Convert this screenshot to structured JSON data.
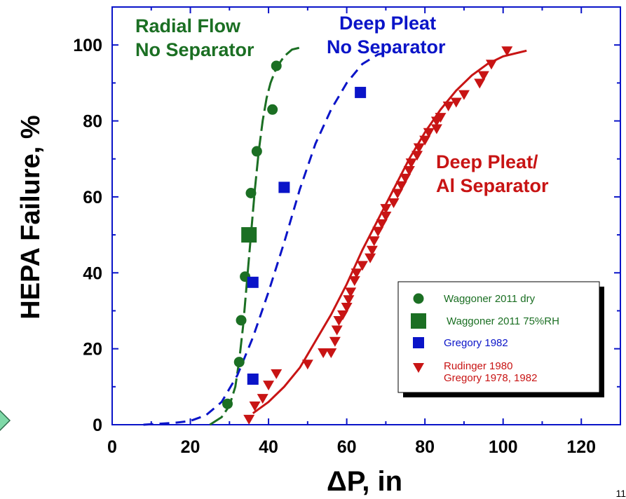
{
  "page_number": "11",
  "colors": {
    "green": "#1b6f23",
    "blue": "#0a14c8",
    "red": "#c81414",
    "nav_arrow": "#7fd9a8"
  },
  "chart_data": {
    "type": "scatter",
    "title": "",
    "xlabel": "ΔP, in",
    "ylabel": "HEPA Failure, %",
    "xlim": [
      0,
      130
    ],
    "ylim": [
      0,
      110
    ],
    "xticks": [
      0,
      20,
      40,
      60,
      80,
      100,
      120
    ],
    "yticks": [
      0,
      20,
      40,
      60,
      80,
      100
    ],
    "grid": false,
    "legend_position": "bottom-right",
    "annotations": [
      {
        "id": "radial",
        "lines": [
          "Radial Flow",
          "No Separator"
        ],
        "color": "green"
      },
      {
        "id": "deep",
        "lines": [
          "Deep Pleat",
          "No Separator"
        ],
        "color": "blue"
      },
      {
        "id": "deep-al",
        "lines": [
          "Deep Pleat/",
          "Al Separator"
        ],
        "color": "red"
      }
    ],
    "series": [
      {
        "name": "Waggoner 2011 dry",
        "marker": "circle",
        "color": "green",
        "points": [
          [
            29.5,
            5.5
          ],
          [
            32.5,
            16.5
          ],
          [
            33,
            27.5
          ],
          [
            34,
            39
          ],
          [
            35.5,
            61
          ],
          [
            37,
            72
          ],
          [
            41,
            83
          ],
          [
            42,
            94.5
          ]
        ]
      },
      {
        "name": "Waggoner 2011 75%RH",
        "marker": "big-square",
        "color": "green",
        "points": [
          [
            35,
            50
          ]
        ]
      },
      {
        "name": "Gregory 1982",
        "marker": "square",
        "color": "blue",
        "points": [
          [
            36,
            12
          ],
          [
            36,
            37.5
          ],
          [
            44,
            62.5
          ],
          [
            63.5,
            87.5
          ]
        ]
      },
      {
        "name": "Rudinger 1980",
        "name_line2": "Gregory 1978, 1982",
        "marker": "triangle-down",
        "color": "red",
        "points": [
          [
            35,
            1.5
          ],
          [
            36.5,
            5
          ],
          [
            38.5,
            7
          ],
          [
            40,
            10.5
          ],
          [
            42,
            13.5
          ],
          [
            50,
            16
          ],
          [
            54,
            19
          ],
          [
            56,
            19
          ],
          [
            57,
            22
          ],
          [
            57.5,
            25
          ],
          [
            58,
            27.5
          ],
          [
            59,
            29
          ],
          [
            60,
            31
          ],
          [
            60.5,
            33
          ],
          [
            61,
            35
          ],
          [
            62,
            38
          ],
          [
            62.5,
            40
          ],
          [
            64,
            42
          ],
          [
            66,
            44
          ],
          [
            66.5,
            46
          ],
          [
            67,
            48.5
          ],
          [
            68,
            51
          ],
          [
            69,
            53
          ],
          [
            70,
            55
          ],
          [
            70,
            57
          ],
          [
            72,
            58.5
          ],
          [
            73,
            61
          ],
          [
            74,
            63
          ],
          [
            75,
            65
          ],
          [
            76,
            67
          ],
          [
            76.5,
            69
          ],
          [
            78,
            71
          ],
          [
            78.5,
            73
          ],
          [
            80,
            75
          ],
          [
            81,
            77
          ],
          [
            83,
            78
          ],
          [
            83,
            80
          ],
          [
            84,
            81
          ],
          [
            86,
            84
          ],
          [
            88,
            85
          ],
          [
            90,
            87
          ],
          [
            94,
            90
          ],
          [
            95,
            92
          ],
          [
            97,
            95
          ],
          [
            101,
            98.5
          ]
        ]
      }
    ],
    "fit_curves": [
      {
        "name": "Radial Flow fit",
        "style": "long-dash",
        "color": "green",
        "points": [
          [
            25,
            0
          ],
          [
            28,
            2
          ],
          [
            30,
            5
          ],
          [
            31.5,
            10
          ],
          [
            32.5,
            17
          ],
          [
            33.5,
            26
          ],
          [
            34.5,
            38
          ],
          [
            35.5,
            50
          ],
          [
            36.5,
            62
          ],
          [
            37.5,
            72
          ],
          [
            38.5,
            80
          ],
          [
            39.5,
            86
          ],
          [
            40.5,
            90
          ],
          [
            42,
            94
          ],
          [
            44,
            97
          ],
          [
            46,
            98.8
          ],
          [
            48,
            99.3
          ]
        ]
      },
      {
        "name": "Deep Pleat No Separator fit",
        "style": "dash",
        "color": "blue",
        "points": [
          [
            8,
            0
          ],
          [
            16,
            0.5
          ],
          [
            20,
            1
          ],
          [
            24,
            2.5
          ],
          [
            28,
            6
          ],
          [
            32,
            13
          ],
          [
            36,
            23
          ],
          [
            40,
            35
          ],
          [
            44,
            48
          ],
          [
            48,
            62
          ],
          [
            52,
            74
          ],
          [
            56,
            83
          ],
          [
            60,
            90
          ],
          [
            64,
            95
          ],
          [
            68,
            97.5
          ],
          [
            71,
            98.2
          ]
        ]
      },
      {
        "name": "Deep Pleat Al Separator fit",
        "style": "solid",
        "color": "red",
        "points": [
          [
            36,
            3
          ],
          [
            40,
            6
          ],
          [
            44,
            10
          ],
          [
            48,
            15
          ],
          [
            52,
            22
          ],
          [
            56,
            29
          ],
          [
            60,
            37
          ],
          [
            64,
            46
          ],
          [
            68,
            54
          ],
          [
            72,
            62
          ],
          [
            76,
            70
          ],
          [
            80,
            77
          ],
          [
            84,
            83
          ],
          [
            88,
            88
          ],
          [
            92,
            92
          ],
          [
            96,
            95
          ],
          [
            100,
            97
          ],
          [
            104,
            98
          ],
          [
            106,
            98.5
          ]
        ]
      }
    ]
  }
}
